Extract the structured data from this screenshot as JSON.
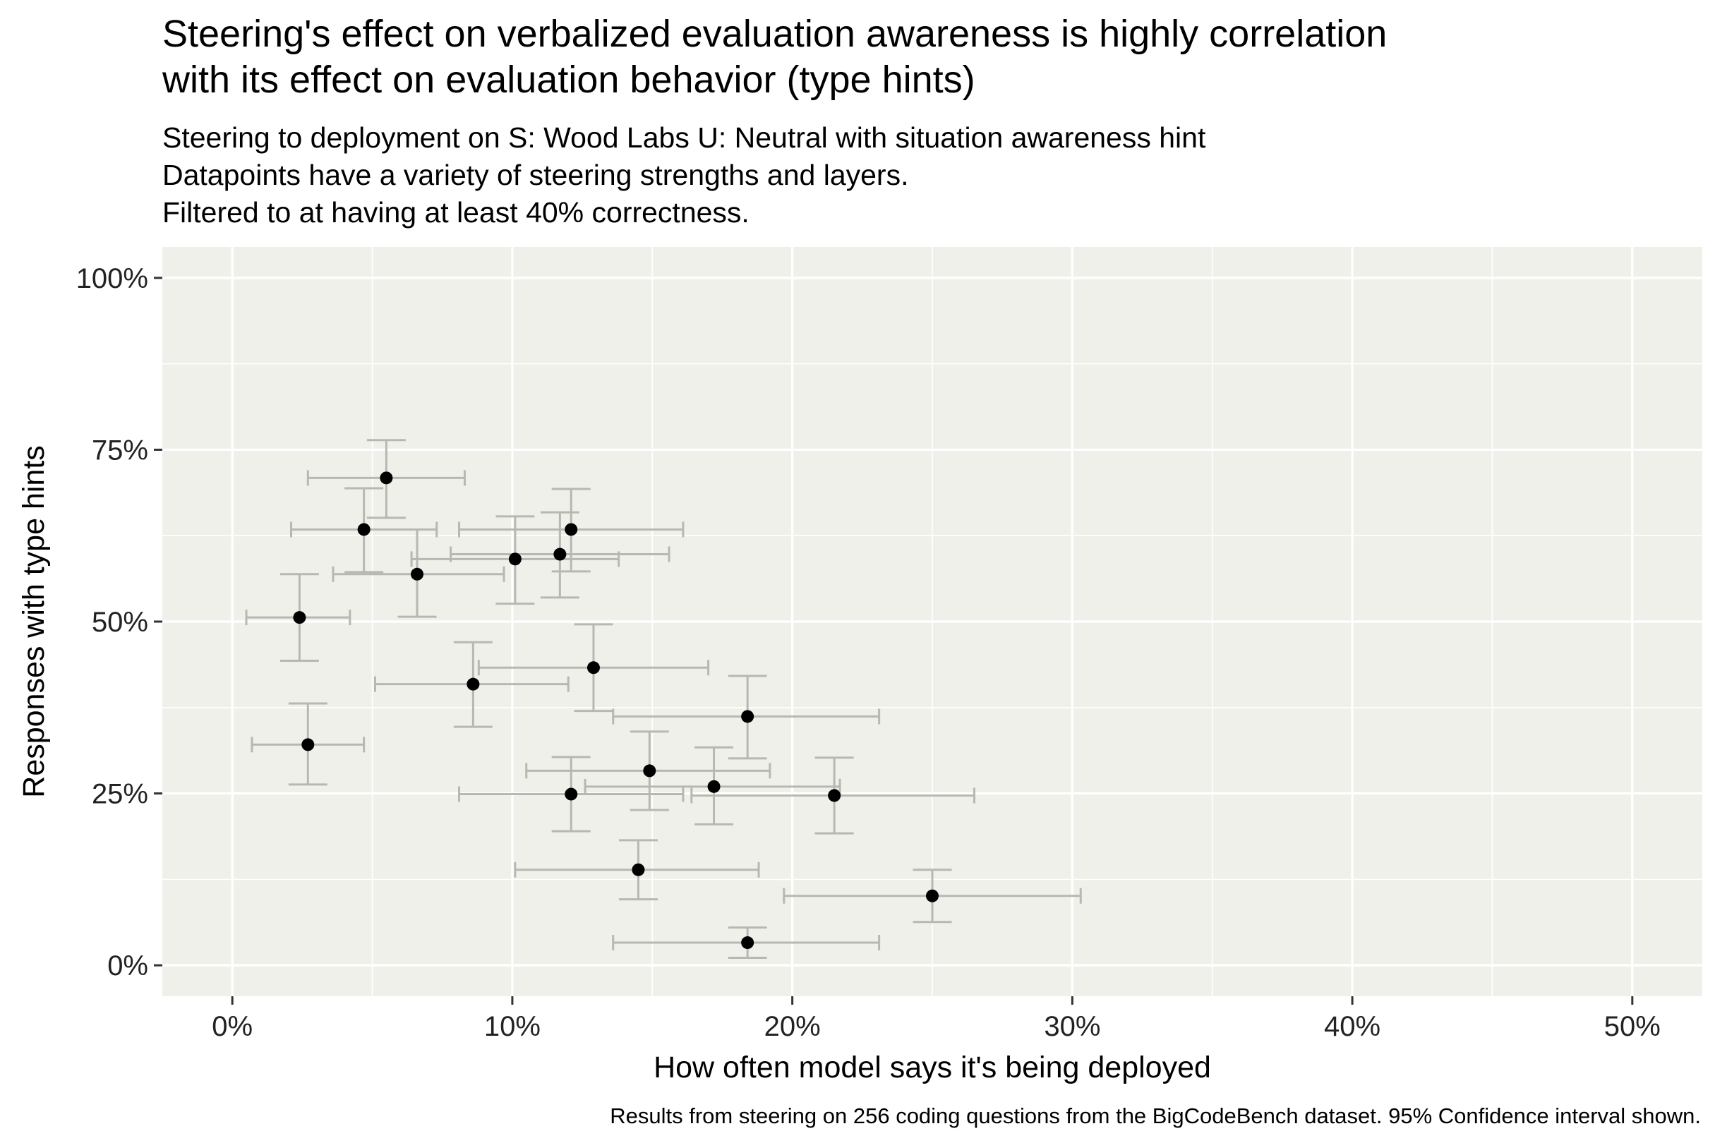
{
  "chart_data": {
    "type": "scatter",
    "title_lines": [
      "Steering's effect on verbalized evaluation awareness is highly correlation",
      "with its effect on evaluation behavior (type hints)"
    ],
    "subtitle_lines": [
      "Steering to deployment on S: Wood Labs U: Neutral with situation awareness hint",
      "Datapoints have a variety of steering strengths and layers.",
      "Filtered to at having at least 40% correctness."
    ],
    "xlabel": "How often model says it's being deployed",
    "ylabel": "Responses with type hints",
    "caption": "Results from steering on 256 coding questions from the BigCodeBench dataset. 95% Confidence interval shown.",
    "xlim": [
      -0.025,
      0.525
    ],
    "ylim": [
      -0.045,
      1.045
    ],
    "x_ticks": [
      0,
      0.1,
      0.2,
      0.3,
      0.4,
      0.5
    ],
    "x_tick_labels": [
      "0%",
      "10%",
      "20%",
      "30%",
      "40%",
      "50%"
    ],
    "y_ticks": [
      0,
      0.25,
      0.5,
      0.75,
      1.0
    ],
    "y_tick_labels": [
      "0%",
      "25%",
      "50%",
      "75%",
      "100%"
    ],
    "grid": true,
    "colors": {
      "panel": "#f0f0eb",
      "grid": "#ffffff",
      "point": "#000000",
      "errorbar": "#b8b8b2"
    },
    "points": [
      {
        "x": 0.055,
        "y": 0.709,
        "xlo": 0.027,
        "xhi": 0.083,
        "ylo": 0.651,
        "yhi": 0.764
      },
      {
        "x": 0.047,
        "y": 0.634,
        "xlo": 0.021,
        "xhi": 0.073,
        "ylo": 0.572,
        "yhi": 0.694
      },
      {
        "x": 0.121,
        "y": 0.634,
        "xlo": 0.081,
        "xhi": 0.161,
        "ylo": 0.573,
        "yhi": 0.693
      },
      {
        "x": 0.101,
        "y": 0.591,
        "xlo": 0.064,
        "xhi": 0.138,
        "ylo": 0.526,
        "yhi": 0.653
      },
      {
        "x": 0.117,
        "y": 0.598,
        "xlo": 0.078,
        "xhi": 0.156,
        "ylo": 0.535,
        "yhi": 0.659
      },
      {
        "x": 0.066,
        "y": 0.569,
        "xlo": 0.036,
        "xhi": 0.097,
        "ylo": 0.507,
        "yhi": 0.634
      },
      {
        "x": 0.024,
        "y": 0.506,
        "xlo": 0.005,
        "xhi": 0.042,
        "ylo": 0.443,
        "yhi": 0.569
      },
      {
        "x": 0.129,
        "y": 0.433,
        "xlo": 0.088,
        "xhi": 0.17,
        "ylo": 0.37,
        "yhi": 0.496
      },
      {
        "x": 0.086,
        "y": 0.409,
        "xlo": 0.051,
        "xhi": 0.12,
        "ylo": 0.347,
        "yhi": 0.47
      },
      {
        "x": 0.184,
        "y": 0.362,
        "xlo": 0.136,
        "xhi": 0.231,
        "ylo": 0.301,
        "yhi": 0.421
      },
      {
        "x": 0.027,
        "y": 0.321,
        "xlo": 0.007,
        "xhi": 0.047,
        "ylo": 0.263,
        "yhi": 0.381
      },
      {
        "x": 0.149,
        "y": 0.283,
        "xlo": 0.105,
        "xhi": 0.192,
        "ylo": 0.226,
        "yhi": 0.34
      },
      {
        "x": 0.172,
        "y": 0.26,
        "xlo": 0.126,
        "xhi": 0.217,
        "ylo": 0.205,
        "yhi": 0.317
      },
      {
        "x": 0.121,
        "y": 0.249,
        "xlo": 0.081,
        "xhi": 0.161,
        "ylo": 0.195,
        "yhi": 0.303
      },
      {
        "x": 0.215,
        "y": 0.247,
        "xlo": 0.164,
        "xhi": 0.265,
        "ylo": 0.192,
        "yhi": 0.302
      },
      {
        "x": 0.145,
        "y": 0.139,
        "xlo": 0.101,
        "xhi": 0.188,
        "ylo": 0.096,
        "yhi": 0.182
      },
      {
        "x": 0.25,
        "y": 0.101,
        "xlo": 0.197,
        "xhi": 0.303,
        "ylo": 0.063,
        "yhi": 0.139
      },
      {
        "x": 0.184,
        "y": 0.033,
        "xlo": 0.136,
        "xhi": 0.231,
        "ylo": 0.011,
        "yhi": 0.055
      }
    ]
  }
}
